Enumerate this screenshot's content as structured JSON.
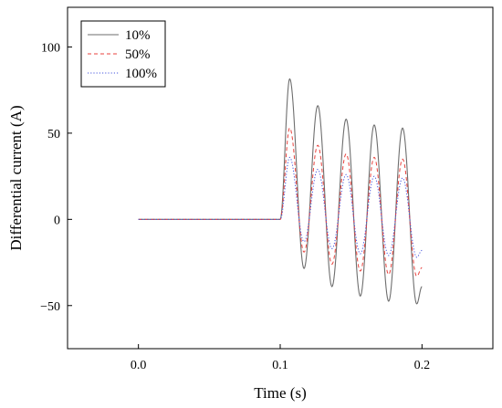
{
  "chart_data": {
    "type": "line",
    "xlabel": "Time (s)",
    "ylabel": "Differential current (A)",
    "xlim": [
      -0.05,
      0.25
    ],
    "ylim": [
      -75,
      123
    ],
    "xticks": [
      0.0,
      0.1,
      0.2
    ],
    "xtick_labels": [
      "0.0",
      "0.1",
      "0.2"
    ],
    "yticks": [
      -50,
      0,
      50,
      100
    ],
    "ytick_labels": [
      "−50",
      "0",
      "50",
      "100"
    ],
    "grid": false,
    "legend_position": "top-left",
    "fault_time_s": 0.1,
    "end_time_s": 0.2,
    "series": [
      {
        "name": "10%",
        "color": "#6e6e6e",
        "dash": "solid",
        "peaks": [
          [
            0.1067,
            81.5
          ],
          [
            0.1265,
            66.0
          ],
          [
            0.1465,
            58.2
          ],
          [
            0.1663,
            54.8
          ],
          [
            0.1863,
            53.0
          ]
        ],
        "troughs": [
          [
            0.1168,
            -28.5
          ],
          [
            0.1365,
            -39.0
          ],
          [
            0.1565,
            -44.5
          ],
          [
            0.1765,
            -47.5
          ],
          [
            0.1963,
            -49.0
          ]
        ],
        "end_value": -39.0
      },
      {
        "name": "50%",
        "color": "#e8413c",
        "dash": "dashed",
        "peaks": [
          [
            0.1067,
            53.0
          ],
          [
            0.1265,
            43.0
          ],
          [
            0.1465,
            38.0
          ],
          [
            0.1663,
            36.0
          ],
          [
            0.1863,
            35.0
          ]
        ],
        "troughs": [
          [
            0.1168,
            -19.0
          ],
          [
            0.1365,
            -26.0
          ],
          [
            0.1565,
            -30.0
          ],
          [
            0.1765,
            -32.0
          ],
          [
            0.1963,
            -33.0
          ]
        ],
        "end_value": -28.0
      },
      {
        "name": "100%",
        "color": "#4455dd",
        "dash": "dotted",
        "peaks": [
          [
            0.1067,
            36.0
          ],
          [
            0.1265,
            29.0
          ],
          [
            0.1465,
            26.0
          ],
          [
            0.1663,
            25.0
          ],
          [
            0.1863,
            24.0
          ]
        ],
        "troughs": [
          [
            0.1168,
            -13.0
          ],
          [
            0.1365,
            -17.0
          ],
          [
            0.1565,
            -20.0
          ],
          [
            0.1765,
            -21.0
          ],
          [
            0.1963,
            -22.0
          ]
        ],
        "end_value": -18.0
      }
    ]
  }
}
